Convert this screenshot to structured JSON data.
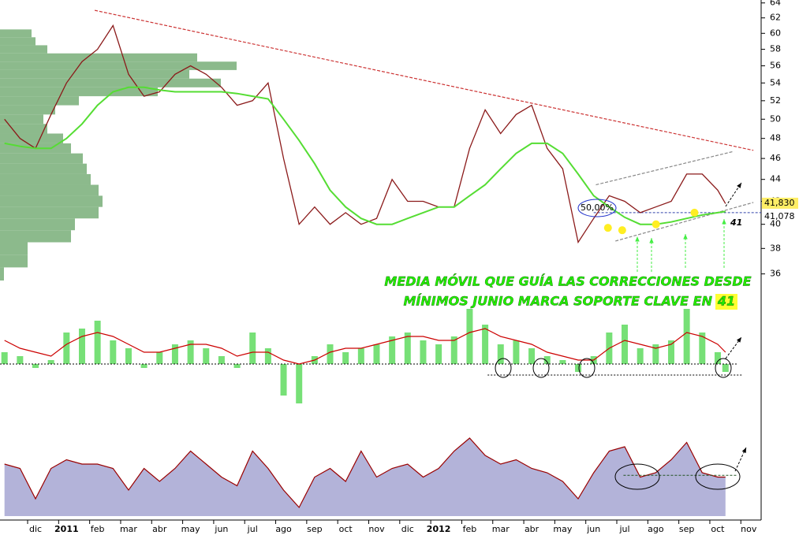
{
  "chart_data": [
    {
      "type": "line",
      "log_scale": true,
      "xlim": [
        -0.145,
        24.4
      ],
      "ylim": [
        35.5,
        64.4
      ],
      "yticks": [
        36,
        38,
        40,
        42,
        44,
        46,
        48,
        50,
        52,
        54,
        56,
        58,
        60,
        62,
        64
      ],
      "xticks": [
        {
          "value": 1,
          "label": "dic"
        },
        {
          "value": 2,
          "label": "2011"
        },
        {
          "value": 3,
          "label": "feb"
        },
        {
          "value": 4,
          "label": "mar"
        },
        {
          "value": 5,
          "label": "abr"
        },
        {
          "value": 6,
          "label": "may"
        },
        {
          "value": 7,
          "label": "jun"
        },
        {
          "value": 8,
          "label": "jul"
        },
        {
          "value": 9,
          "label": "ago"
        },
        {
          "value": 10,
          "label": "sep"
        },
        {
          "value": 11,
          "label": "oct"
        },
        {
          "value": 12,
          "label": "nov"
        },
        {
          "value": 13,
          "label": "dic"
        },
        {
          "value": 14,
          "label": "2012"
        },
        {
          "value": 15,
          "label": "feb"
        },
        {
          "value": 16,
          "label": "mar"
        },
        {
          "value": 17,
          "label": "abr"
        },
        {
          "value": 18,
          "label": "may"
        },
        {
          "value": 19,
          "label": "jun"
        },
        {
          "value": 20,
          "label": "jul"
        },
        {
          "value": 21,
          "label": "ago"
        },
        {
          "value": 22,
          "label": "sep"
        },
        {
          "value": 23,
          "label": "oct"
        },
        {
          "value": 24,
          "label": "nov"
        }
      ],
      "x": [
        0,
        0.5,
        1,
        1.5,
        2,
        2.5,
        3,
        3.5,
        4,
        4.5,
        5,
        5.5,
        6,
        6.5,
        7,
        7.5,
        8,
        8.5,
        9,
        9.5,
        10,
        10.5,
        11,
        11.5,
        12,
        12.5,
        13,
        13.5,
        14,
        14.5,
        15,
        15.5,
        16,
        16.5,
        17,
        17.5,
        18,
        18.5,
        19,
        19.5,
        20,
        20.5,
        21,
        21.5,
        22,
        22.5,
        23,
        23.25
      ],
      "series": [
        {
          "color": "#8b1a1a",
          "values": [
            50,
            48,
            47,
            50.5,
            54,
            56.5,
            58,
            61,
            55,
            52.5,
            53,
            55,
            56,
            55,
            53.5,
            51.5,
            52,
            54,
            46,
            40,
            41.5,
            40,
            41,
            40,
            40.5,
            44,
            42,
            42,
            41.5,
            41.5,
            47,
            51,
            48.5,
            50.5,
            51.5,
            47,
            45,
            38.5,
            40.5,
            42.5,
            42,
            41,
            41.5,
            42,
            44.5,
            44.5,
            43,
            41.8
          ]
        },
        {
          "color": "#55dd33",
          "values": [
            47.5,
            47.2,
            47,
            47,
            48,
            49.5,
            51.5,
            53,
            53.5,
            53.5,
            53.2,
            53,
            53,
            53,
            53,
            52.8,
            52.5,
            52.2,
            50,
            47.8,
            45.5,
            43,
            41.5,
            40.5,
            40,
            40,
            40.5,
            41,
            41.5,
            41.5,
            42.5,
            43.5,
            45,
            46.5,
            47.5,
            47.5,
            46.5,
            44.5,
            42.5,
            41.5,
            40.6,
            40,
            40,
            40.2,
            40.5,
            40.8,
            41,
            41.1
          ]
        }
      ],
      "volume_profile": {
        "color": "#7fb27f",
        "levels": [
          36,
          37,
          38,
          39,
          40,
          41,
          42,
          43,
          44,
          45,
          46,
          47,
          48,
          49,
          50,
          51,
          52,
          53,
          54,
          55,
          56,
          57,
          58,
          59,
          60
        ],
        "values": [
          5,
          35,
          35,
          90,
          95,
          125,
          130,
          125,
          115,
          110,
          105,
          90,
          80,
          60,
          55,
          70,
          100,
          200,
          280,
          240,
          300,
          250,
          60,
          45,
          40
        ]
      },
      "trend_lines": [
        {
          "color": "#cc3333",
          "x": [
            2.91,
            24.15
          ],
          "y": [
            63,
            46.8
          ]
        },
        {
          "color": "#888888",
          "x": [
            19.07,
            23.52
          ],
          "y": [
            43.5,
            46.7
          ]
        },
        {
          "color": "#888888",
          "x": [
            19.7,
            24.15
          ],
          "y": [
            38.6,
            41.9
          ]
        }
      ],
      "points": {
        "color": "#ffee22",
        "x": [
          19.46,
          19.92,
          21.01,
          22.25
        ],
        "y": [
          39.7,
          39.5,
          40,
          41
        ]
      },
      "support": {
        "value": 41,
        "label": "41",
        "x": [
          19,
          24.4
        ]
      },
      "fib_label": "50,00%",
      "note": [
        "MEDIA MÓVIL QUE GUÍA LAS CORRECCIONES DESDE",
        "MÍNIMOS JUNIO MARCA SOPORTE CLAVE EN"
      ],
      "last_price": {
        "value": 41.83,
        "label": "41,830"
      },
      "ma_value": {
        "value": 41.078,
        "label": "41,078"
      }
    },
    {
      "type": "bar",
      "ylim": [
        -70,
        77
      ],
      "series": [
        {
          "color": "#77e077",
          "values": [
            15,
            10,
            -5,
            5,
            40,
            45,
            55,
            30,
            20,
            -5,
            15,
            25,
            30,
            20,
            10,
            -5,
            40,
            20,
            -40,
            -50,
            10,
            25,
            15,
            20,
            25,
            35,
            40,
            30,
            25,
            35,
            70,
            50,
            25,
            30,
            20,
            10,
            5,
            -10,
            10,
            40,
            50,
            20,
            25,
            30,
            70,
            40,
            15,
            -10
          ]
        },
        {
          "color": "#cc0000",
          "values": [
            30,
            20,
            15,
            10,
            25,
            35,
            40,
            35,
            25,
            15,
            15,
            20,
            25,
            25,
            20,
            10,
            15,
            15,
            5,
            0,
            5,
            15,
            20,
            20,
            25,
            30,
            35,
            35,
            30,
            30,
            40,
            45,
            35,
            30,
            25,
            15,
            10,
            5,
            5,
            20,
            30,
            25,
            20,
            25,
            40,
            35,
            25,
            15
          ]
        }
      ],
      "level_line": {
        "value": -14,
        "x": [
          15.58,
          23.82
        ]
      }
    },
    {
      "type": "area",
      "ylim": [
        0,
        100
      ],
      "color": "#b3b3d9",
      "line_color": "#990000",
      "values": [
        60,
        55,
        20,
        55,
        65,
        60,
        60,
        55,
        30,
        55,
        40,
        55,
        75,
        60,
        45,
        35,
        75,
        55,
        30,
        10,
        45,
        55,
        40,
        75,
        45,
        55,
        60,
        45,
        55,
        75,
        90,
        70,
        60,
        65,
        55,
        50,
        40,
        20,
        50,
        75,
        80,
        45,
        50,
        65,
        85,
        50,
        45,
        45
      ],
      "level_line": {
        "value": 47,
        "x": [
          19.96,
          23.65
        ]
      }
    }
  ]
}
